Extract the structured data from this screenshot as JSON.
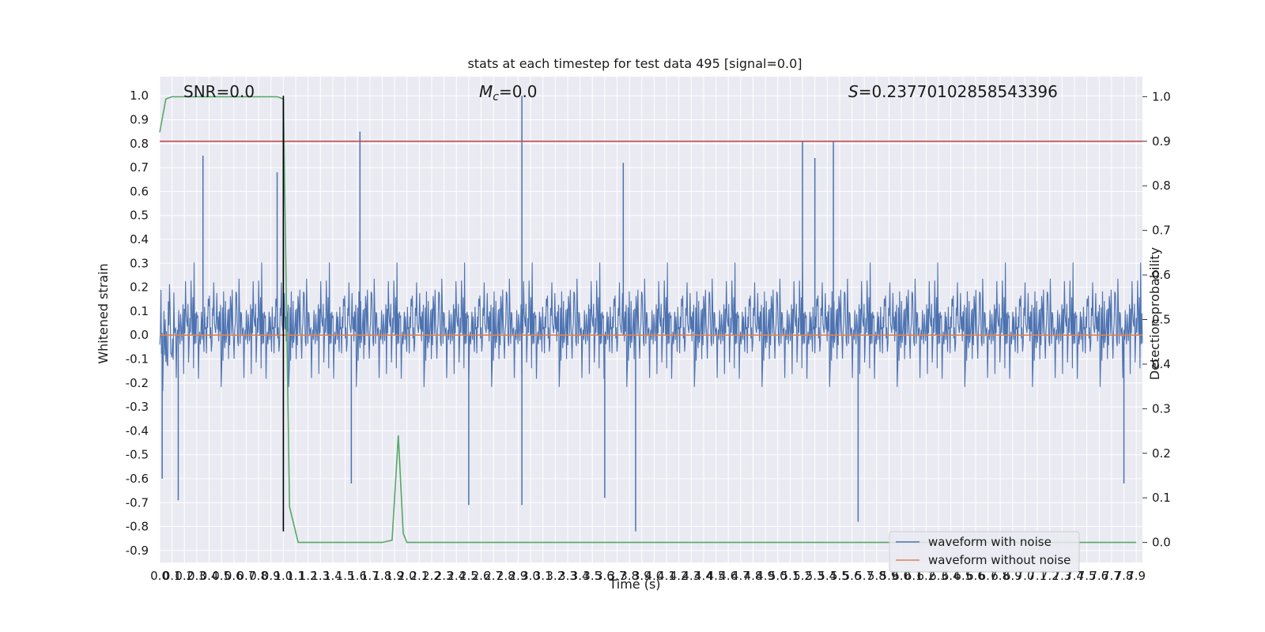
{
  "chart_data": {
    "type": "line",
    "title": "stats at each timestep for test data 495 [signal=0.0]",
    "xlabel": "Time (s)",
    "ylabel_left": "Whitened strain",
    "ylabel_right": "Detection probability",
    "xlim": [
      0,
      7.95
    ],
    "ylim_left": [
      -0.95,
      1.08
    ],
    "ylim_right": [
      -0.045,
      1.045
    ],
    "xticks": [
      0.0,
      0.1,
      0.2,
      0.3,
      0.4,
      0.5,
      0.6,
      0.7,
      0.8,
      0.9,
      1.0,
      1.1,
      1.2,
      1.3,
      1.4,
      1.5,
      1.6,
      1.7,
      1.8,
      1.9,
      2.0,
      2.1,
      2.2,
      2.3,
      2.4,
      2.5,
      2.6,
      2.7,
      2.8,
      2.9,
      3.0,
      3.1,
      3.2,
      3.3,
      3.4,
      3.5,
      3.6,
      3.7,
      3.8,
      3.9,
      4.0,
      4.1,
      4.2,
      4.3,
      4.4,
      4.5,
      4.6,
      4.7,
      4.8,
      4.9,
      5.0,
      5.1,
      5.2,
      5.3,
      5.4,
      5.5,
      5.6,
      5.7,
      5.8,
      5.9,
      6.0,
      6.1,
      6.2,
      6.3,
      6.4,
      6.5,
      6.6,
      6.7,
      6.8,
      6.9,
      7.0,
      7.1,
      7.2,
      7.3,
      7.4,
      7.5,
      7.6,
      7.7,
      7.8,
      7.9
    ],
    "yticks_left": [
      -0.9,
      -0.8,
      -0.7,
      -0.6,
      -0.5,
      -0.4,
      -0.3,
      -0.2,
      -0.1,
      0.0,
      0.1,
      0.2,
      0.3,
      0.4,
      0.5,
      0.6,
      0.7,
      0.8,
      0.9,
      1.0
    ],
    "yticks_right": [
      0.0,
      0.1,
      0.2,
      0.3,
      0.4,
      0.5,
      0.6,
      0.7,
      0.8,
      0.9,
      1.0
    ],
    "grid": true,
    "legend_position": "lower right",
    "annotations": {
      "snr": "SNR=0.0",
      "mc_symbol": "M",
      "mc_sub": "c",
      "mc_value": "=0.0",
      "s_symbol": "S",
      "s_value": "=0.23770102858543396"
    },
    "series": [
      {
        "name": "waveform with noise",
        "axis": "left",
        "color": "#4c72b0",
        "description_of_envelope": "dense random noise, mostly within [-0.45, 0.45]",
        "spikes": [
          {
            "x": 0.35,
            "y": 0.75
          },
          {
            "x": 0.95,
            "y": 0.68
          },
          {
            "x": 1.0,
            "y": 0.98
          },
          {
            "x": 1.62,
            "y": 0.85
          },
          {
            "x": 2.93,
            "y": 1.0
          },
          {
            "x": 2.93,
            "y": -0.71
          },
          {
            "x": 3.75,
            "y": 0.72
          },
          {
            "x": 3.85,
            "y": -0.82
          },
          {
            "x": 5.2,
            "y": 0.81
          },
          {
            "x": 5.45,
            "y": 0.81
          },
          {
            "x": 5.3,
            "y": 0.74
          },
          {
            "x": 5.65,
            "y": -0.78
          },
          {
            "x": 0.15,
            "y": -0.69
          },
          {
            "x": 0.02,
            "y": -0.6
          },
          {
            "x": 1.55,
            "y": -0.62
          },
          {
            "x": 2.5,
            "y": -0.71
          },
          {
            "x": 3.6,
            "y": -0.68
          },
          {
            "x": 7.8,
            "y": -0.62
          }
        ]
      },
      {
        "name": "waveform without noise",
        "axis": "left",
        "color": "#dd8452",
        "x": [
          0,
          7.95
        ],
        "y": [
          0.0,
          0.0
        ]
      },
      {
        "name": "detection probability",
        "axis": "right",
        "color": "#55a868",
        "x": [
          0.0,
          0.05,
          0.1,
          0.15,
          0.9,
          0.95,
          1.0,
          1.05,
          1.12,
          1.2,
          1.5,
          1.8,
          1.88,
          1.93,
          1.97,
          2.0,
          2.05,
          2.1,
          7.9
        ],
        "y": [
          0.92,
          0.995,
          1.0,
          1.0,
          1.0,
          1.0,
          0.995,
          0.08,
          0.0,
          0.0,
          0.0,
          0.0,
          0.005,
          0.24,
          0.02,
          0.0,
          0.0,
          0.0,
          0.0
        ]
      },
      {
        "name": "threshold",
        "axis": "right",
        "color": "#c44e52",
        "x": [
          0,
          7.95
        ],
        "y": [
          0.9,
          0.9
        ]
      },
      {
        "name": "event marker",
        "axis": "left",
        "color": "#000000",
        "x": [
          1.0,
          1.0
        ],
        "y": [
          -0.82,
          1.0
        ]
      }
    ],
    "legend": [
      {
        "label": "waveform with noise",
        "color": "#4c72b0"
      },
      {
        "label": "waveform without noise",
        "color": "#dd8452"
      }
    ]
  }
}
